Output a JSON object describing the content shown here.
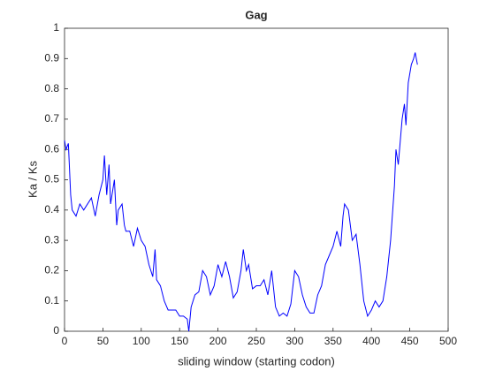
{
  "chart_data": {
    "type": "line",
    "title": "Gag",
    "xlabel": "sliding window (starting codon)",
    "ylabel": "Ka / Ks",
    "x": [
      0,
      2,
      5,
      8,
      10,
      15,
      20,
      25,
      30,
      35,
      40,
      45,
      50,
      52,
      55,
      58,
      60,
      65,
      68,
      70,
      75,
      78,
      80,
      85,
      90,
      95,
      100,
      105,
      110,
      115,
      118,
      120,
      125,
      130,
      135,
      140,
      145,
      150,
      155,
      160,
      162,
      165,
      170,
      175,
      180,
      185,
      190,
      195,
      200,
      205,
      210,
      215,
      220,
      225,
      230,
      233,
      237,
      240,
      245,
      250,
      255,
      260,
      265,
      270,
      275,
      280,
      285,
      290,
      295,
      300,
      305,
      310,
      315,
      320,
      325,
      330,
      335,
      340,
      345,
      350,
      355,
      360,
      363,
      365,
      370,
      375,
      380,
      385,
      390,
      395,
      400,
      405,
      410,
      415,
      420,
      425,
      430,
      432,
      435,
      440,
      443,
      445,
      448,
      452,
      455,
      457,
      460
    ],
    "series": [
      {
        "name": "Ka/Ks",
        "color": "#0000ff",
        "values": [
          0.63,
          0.6,
          0.62,
          0.45,
          0.4,
          0.38,
          0.42,
          0.4,
          0.42,
          0.44,
          0.38,
          0.45,
          0.5,
          0.58,
          0.45,
          0.55,
          0.42,
          0.5,
          0.35,
          0.4,
          0.42,
          0.35,
          0.33,
          0.33,
          0.28,
          0.34,
          0.3,
          0.28,
          0.22,
          0.18,
          0.27,
          0.17,
          0.15,
          0.1,
          0.07,
          0.07,
          0.07,
          0.05,
          0.05,
          0.04,
          0.0,
          0.08,
          0.12,
          0.13,
          0.2,
          0.18,
          0.12,
          0.15,
          0.22,
          0.18,
          0.23,
          0.18,
          0.11,
          0.13,
          0.2,
          0.27,
          0.2,
          0.22,
          0.14,
          0.15,
          0.15,
          0.17,
          0.12,
          0.2,
          0.08,
          0.05,
          0.06,
          0.05,
          0.09,
          0.2,
          0.18,
          0.12,
          0.08,
          0.06,
          0.06,
          0.12,
          0.15,
          0.22,
          0.25,
          0.28,
          0.33,
          0.28,
          0.38,
          0.42,
          0.4,
          0.3,
          0.32,
          0.22,
          0.1,
          0.05,
          0.07,
          0.1,
          0.08,
          0.1,
          0.18,
          0.3,
          0.48,
          0.6,
          0.55,
          0.7,
          0.75,
          0.68,
          0.82,
          0.88,
          0.9,
          0.92,
          0.88
        ]
      }
    ],
    "xlim": [
      0,
      500
    ],
    "xticks": [
      0,
      50,
      100,
      150,
      200,
      250,
      300,
      350,
      400,
      450,
      500
    ],
    "ylim": [
      0,
      1
    ],
    "yticks": [
      0,
      0.1,
      0.2,
      0.3,
      0.4,
      0.5,
      0.6,
      0.7,
      0.8,
      0.9,
      1
    ]
  }
}
